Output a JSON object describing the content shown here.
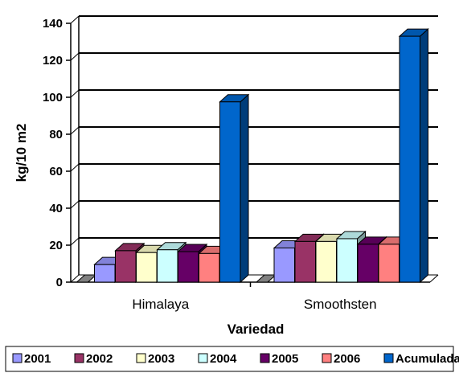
{
  "chart_data": {
    "type": "bar",
    "style": "3d-clustered-column",
    "categories": [
      "Himalaya",
      "Smoothsten"
    ],
    "series": [
      {
        "name": "2001",
        "values": [
          9.5,
          18.5
        ],
        "color": "#9999ff"
      },
      {
        "name": "2002",
        "values": [
          17,
          22
        ],
        "color": "#993366"
      },
      {
        "name": "2003",
        "values": [
          16,
          22
        ],
        "color": "#ffffcc"
      },
      {
        "name": "2004",
        "values": [
          17.5,
          23.5
        ],
        "color": "#ccffff"
      },
      {
        "name": "2005",
        "values": [
          16.5,
          20.5
        ],
        "color": "#660066"
      },
      {
        "name": "2006",
        "values": [
          15.5,
          20.5
        ],
        "color": "#ff8080"
      },
      {
        "name": "Acumulada",
        "values": [
          97.5,
          133
        ],
        "color": "#0066cc"
      }
    ],
    "yticks": [
      "0",
      "20",
      "40",
      "60",
      "80",
      "100",
      "120",
      "140"
    ],
    "ylim": [
      0,
      140
    ],
    "xlabel": "Variedad",
    "ylabel": "kg/10 m2",
    "grid": true,
    "legend": "bottom"
  }
}
